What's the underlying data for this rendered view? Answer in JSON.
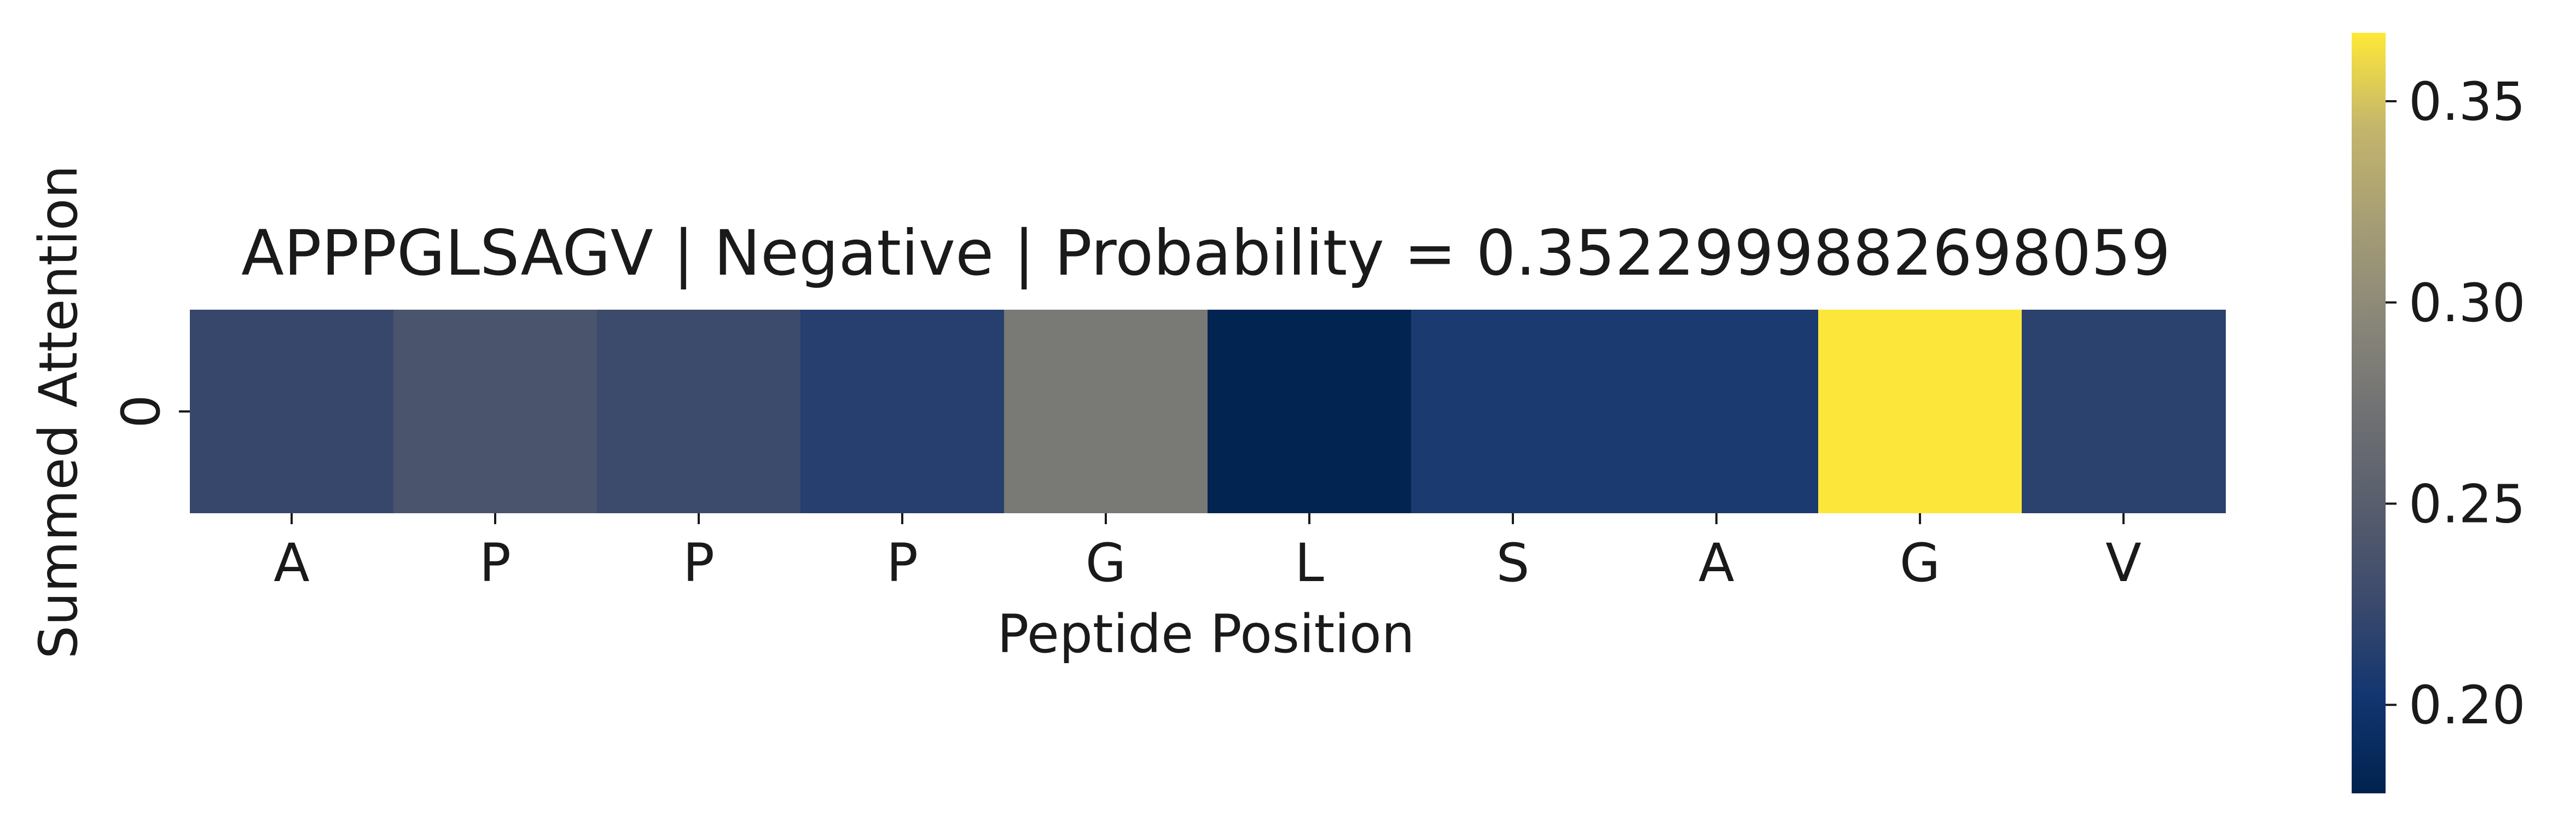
{
  "chart_data": {
    "type": "heatmap",
    "title": "APPPGLSAGV | Negative | Probability = 0.3522999882698059",
    "xlabel": "Peptide Position",
    "ylabel": "Summed Attention",
    "x_categories": [
      "A",
      "P",
      "P",
      "P",
      "G",
      "L",
      "S",
      "A",
      "G",
      "V"
    ],
    "y_categories": [
      "0"
    ],
    "values": [
      [
        0.223,
        0.238,
        0.226,
        0.214,
        0.281,
        0.18,
        0.207,
        0.207,
        0.366,
        0.216
      ]
    ],
    "colorscale": "cividis",
    "colorbar": {
      "range": [
        0.178,
        0.367
      ],
      "ticks": [
        0.2,
        0.25,
        0.3,
        0.35
      ],
      "tick_labels": [
        "0.20",
        "0.25",
        "0.30",
        "0.35"
      ]
    }
  }
}
